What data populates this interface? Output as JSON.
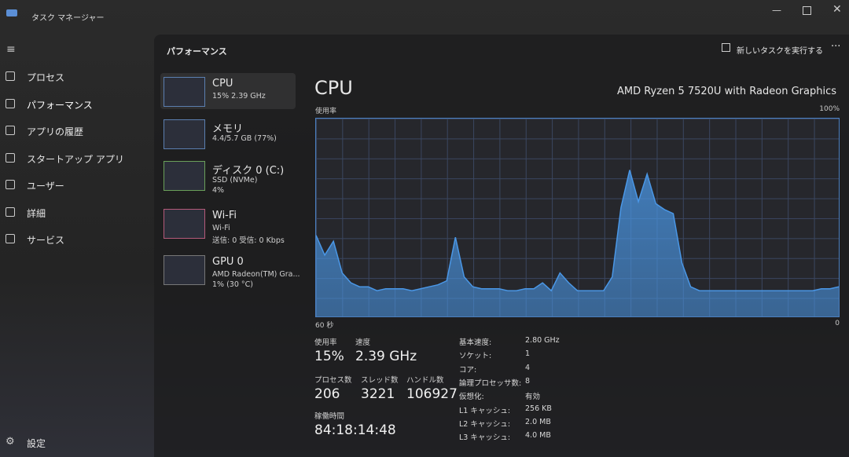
{
  "window": {
    "title": "タスク マネージャー"
  },
  "nav": {
    "items": [
      "プロセス",
      "パフォーマンス",
      "アプリの履歴",
      "スタートアップ アプリ",
      "ユーザー",
      "詳細",
      "サービス"
    ],
    "settings": "設定"
  },
  "header": {
    "title": "パフォーマンス",
    "run_task": "新しいタスクを実行する"
  },
  "devices": [
    {
      "name": "CPU",
      "lines": [
        "15%  2.39 GHz"
      ]
    },
    {
      "name": "メモリ",
      "lines": [
        "4.4/5.7 GB (77%)"
      ]
    },
    {
      "name": "ディスク 0 (C:)",
      "lines": [
        "SSD (NVMe)",
        "4%"
      ]
    },
    {
      "name": "Wi-Fi",
      "lines": [
        "Wi-Fi",
        "送信: 0 受信: 0 Kbps"
      ]
    },
    {
      "name": "GPU 0",
      "lines": [
        "AMD Radeon(TM) Gra...",
        "1% (30 °C)"
      ]
    }
  ],
  "detail": {
    "title": "CPU",
    "model": "AMD Ryzen 5 7520U with Radeon Graphics"
  },
  "chart_data": {
    "type": "area",
    "y_label": "使用率",
    "color": "#4a97e6",
    "ylim": [
      0,
      100
    ],
    "yticks": [
      {
        "value": 100,
        "label": "100%"
      }
    ],
    "xlim": [
      60,
      0
    ],
    "xticks": [
      {
        "value": 60,
        "label": "60 秒"
      },
      0
    ],
    "grid": true,
    "values": [
      41,
      31,
      38,
      22,
      17,
      15,
      15,
      13,
      14,
      14,
      14,
      13,
      14,
      15,
      16,
      18,
      40,
      20,
      15,
      14,
      14,
      14,
      13,
      13,
      14,
      14,
      17,
      13,
      22,
      17,
      13,
      13,
      13,
      13,
      20,
      55,
      74,
      58,
      72,
      57,
      54,
      52,
      27,
      15,
      13,
      13,
      13,
      13,
      13,
      13,
      13,
      13,
      13,
      13,
      13,
      13,
      13,
      13,
      14,
      14,
      15
    ]
  },
  "stats": [
    {
      "label": "使用率",
      "value": "15%"
    },
    {
      "label": "速度",
      "value": "2.39 GHz"
    },
    {
      "label": "プロセス数",
      "value": "206"
    },
    {
      "label": "スレッド数",
      "value": "3221"
    },
    {
      "label": "ハンドル数",
      "value": "106927"
    },
    {
      "label": "稼働時間",
      "value": "84:18:14:48"
    }
  ],
  "specs": [
    [
      "基本速度:",
      "2.80 GHz"
    ],
    [
      "ソケット:",
      "1"
    ],
    [
      "コア:",
      "4"
    ],
    [
      "論理プロセッサ数:",
      "8"
    ],
    [
      "仮想化:",
      "有効"
    ],
    [
      "L1 キャッシュ:",
      "256 KB"
    ],
    [
      "L2 キャッシュ:",
      "2.0 MB"
    ],
    [
      "L3 キャッシュ:",
      "4.0 MB"
    ]
  ]
}
